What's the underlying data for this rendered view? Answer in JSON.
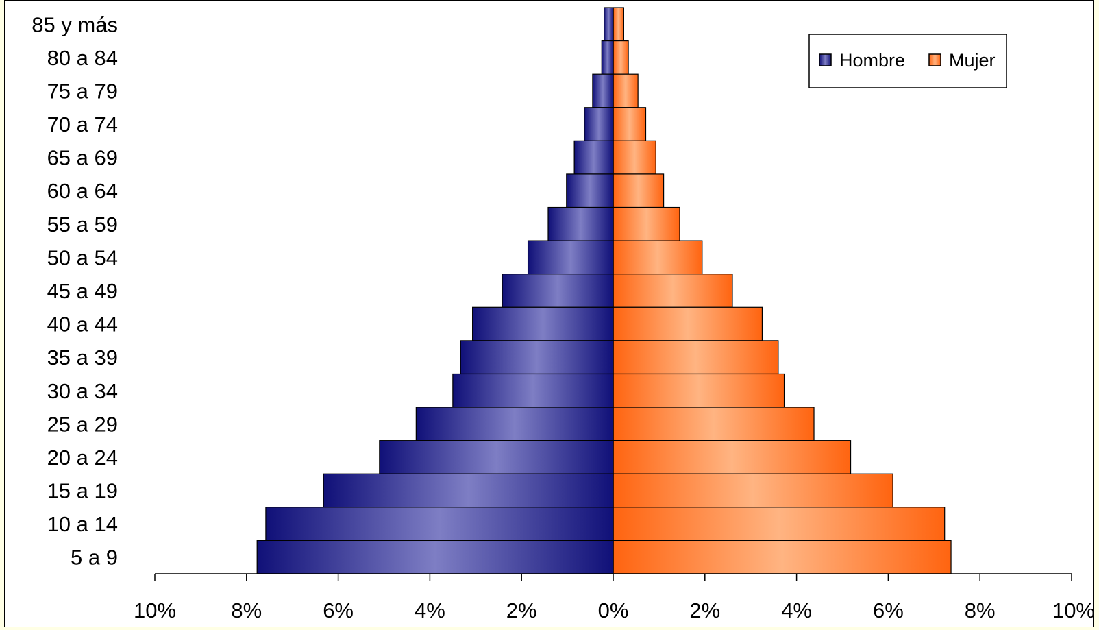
{
  "chart_data": {
    "type": "bar",
    "orientation": "horizontal",
    "categories": [
      "85 y más",
      "80 a 84",
      "75 a 79",
      "70 a 74",
      "65 a 69",
      "60 a 64",
      "55 a 59",
      "50 a 54",
      "45 a 49",
      "40 a 44",
      "35 a 39",
      "30 a 34",
      "25 a 29",
      "20 a 24",
      "15 a 19",
      "10 a 14",
      "5 a 9"
    ],
    "series": [
      {
        "name": "Hombre",
        "color": "#1c1c80",
        "values": [
          0.2,
          0.25,
          0.45,
          0.63,
          0.85,
          1.02,
          1.42,
          1.86,
          2.42,
          3.07,
          3.33,
          3.5,
          4.3,
          5.1,
          6.32,
          7.58,
          7.77
        ]
      },
      {
        "name": "Mujer",
        "color": "#ff6b16",
        "values": [
          0.23,
          0.33,
          0.54,
          0.71,
          0.93,
          1.1,
          1.45,
          1.94,
          2.6,
          3.25,
          3.6,
          3.73,
          4.38,
          5.18,
          6.1,
          7.23,
          7.37
        ]
      }
    ],
    "xlim": [
      -10,
      10
    ],
    "xticks": [
      "10%",
      "8%",
      "6%",
      "4%",
      "2%",
      "0%",
      "2%",
      "4%",
      "6%",
      "8%",
      "10%"
    ],
    "title": "",
    "xlabel": "",
    "ylabel": "",
    "grid": false,
    "legend_position": "top-right"
  }
}
